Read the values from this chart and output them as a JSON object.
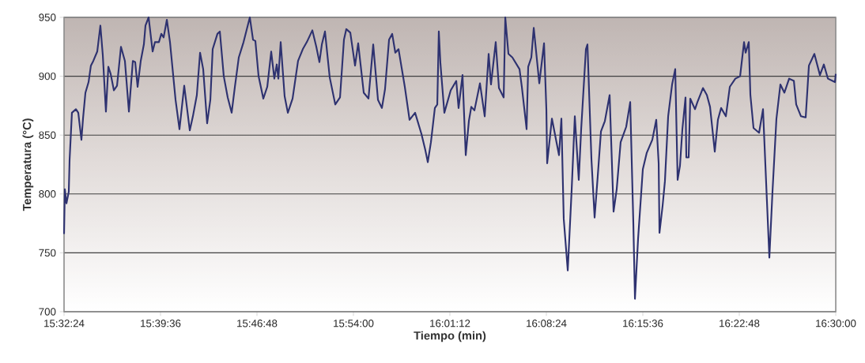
{
  "chart_data": {
    "type": "line",
    "xlabel": "Tiempo (min)",
    "ylabel": "Temperatura (°C)",
    "xlim": [
      15.54,
      16.5
    ],
    "ylim": [
      700,
      950
    ],
    "xticks": [
      {
        "value": 15.54,
        "label": "15:32:24"
      },
      {
        "value": 15.66,
        "label": "15:39:36"
      },
      {
        "value": 15.78,
        "label": "15:46:48"
      },
      {
        "value": 15.9,
        "label": "15:54:00"
      },
      {
        "value": 16.02,
        "label": "16:01:12"
      },
      {
        "value": 16.14,
        "label": "16:08:24"
      },
      {
        "value": 16.26,
        "label": "16:15:36"
      },
      {
        "value": 16.38,
        "label": "16:22:48"
      },
      {
        "value": 16.5,
        "label": "16:30:00"
      }
    ],
    "yticks": [
      700,
      750,
      800,
      850,
      900,
      950
    ],
    "grid": "y",
    "legend": false,
    "line_style": "solid",
    "series": [
      {
        "color": "#2e3270",
        "x": [
          15.54,
          15.541,
          15.543,
          15.5459,
          15.5469,
          15.5498,
          15.5548,
          15.5577,
          15.5616,
          15.5636,
          15.5666,
          15.5705,
          15.5734,
          15.5764,
          15.5813,
          15.5852,
          15.5882,
          15.5921,
          15.5951,
          15.598,
          15.602,
          15.6059,
          15.6108,
          15.6157,
          15.6207,
          15.6256,
          15.6285,
          15.6315,
          15.6354,
          15.6393,
          15.6413,
          15.6452,
          15.6502,
          15.6531,
          15.658,
          15.661,
          15.6639,
          15.6679,
          15.6718,
          15.6787,
          15.6836,
          15.6895,
          15.6915,
          15.6964,
          15.7003,
          15.7052,
          15.7092,
          15.7131,
          15.718,
          15.722,
          15.7249,
          15.7308,
          15.7338,
          15.7387,
          15.7436,
          15.7485,
          15.7525,
          15.7574,
          15.7633,
          15.7711,
          15.7751,
          15.778,
          15.782,
          15.7879,
          15.7928,
          15.7977,
          15.8016,
          15.8046,
          15.8066,
          15.8095,
          15.8144,
          15.8184,
          15.8243,
          15.8311,
          15.837,
          15.842,
          15.8489,
          15.8538,
          15.8577,
          15.8607,
          15.8646,
          15.8705,
          15.8774,
          15.8833,
          15.8882,
          15.8911,
          15.8961,
          15.902,
          15.9059,
          15.9128,
          15.9187,
          15.9246,
          15.9305,
          15.9354,
          15.9393,
          15.9443,
          15.9482,
          15.9521,
          15.9561,
          15.9639,
          15.9698,
          15.9767,
          15.9846,
          15.9895,
          15.9925,
          15.9964,
          16.0013,
          16.0043,
          16.0062,
          16.0082,
          16.0131,
          16.021,
          16.0279,
          16.0308,
          16.0357,
          16.0397,
          16.0436,
          16.0466,
          16.0505,
          16.0574,
          16.0633,
          16.0682,
          16.0711,
          16.077,
          16.081,
          16.0869,
          16.0889,
          16.0928,
          16.0977,
          16.1066,
          16.1095,
          16.1154,
          16.1174,
          16.1213,
          16.1243,
          16.1312,
          16.1371,
          16.14,
          16.141,
          16.1469,
          16.1557,
          16.1587,
          16.1616,
          16.1666,
          16.1715,
          16.1754,
          16.1803,
          16.1833,
          16.1892,
          16.1911,
          16.1961,
          16.2,
          16.2039,
          16.2079,
          16.2128,
          16.2187,
          16.2236,
          16.2275,
          16.2324,
          16.2393,
          16.2443,
          16.2482,
          16.2502,
          16.2541,
          16.259,
          16.26,
          16.2649,
          16.2718,
          16.2767,
          16.2797,
          16.2807,
          16.2846,
          16.2875,
          16.2915,
          16.2964,
          16.3003,
          16.3033,
          16.3062,
          16.3092,
          16.3131,
          16.3141,
          16.317,
          16.319,
          16.3249,
          16.3279,
          16.3348,
          16.3397,
          16.3436,
          16.3495,
          16.3534,
          16.3574,
          16.3633,
          16.3682,
          16.3751,
          16.381,
          16.3859,
          16.3879,
          16.3918,
          16.3938,
          16.3977,
          16.4046,
          16.4095,
          16.4125,
          16.4174,
          16.4213,
          16.4262,
          16.4311,
          16.4361,
          16.442,
          16.4479,
          16.4508,
          16.4567,
          16.4626,
          16.4666,
          16.4734,
          16.4803,
          16.4852,
          16.4902,
          16.499,
          16.5
        ],
        "values": [
          766,
          804,
          792,
          802,
          829,
          869,
          872,
          869,
          846,
          864,
          886,
          895,
          909,
          913,
          921,
          943,
          918,
          870,
          908,
          902,
          888,
          892,
          925,
          913,
          870,
          913,
          912,
          891,
          913,
          927,
          943,
          950,
          921,
          929,
          929,
          936,
          933,
          948,
          929,
          880,
          855,
          892,
          881,
          854,
          866,
          884,
          920,
          906,
          860,
          880,
          923,
          936,
          938,
          900,
          882,
          869,
          891,
          916,
          929,
          950,
          931,
          930,
          900,
          881,
          891,
          921,
          898,
          910,
          898,
          929,
          883,
          869,
          881,
          913,
          923,
          929,
          939,
          925,
          912,
          927,
          938,
          899,
          876,
          882,
          931,
          940,
          937,
          909,
          928,
          886,
          881,
          927,
          880,
          873,
          889,
          931,
          936,
          920,
          923,
          891,
          863,
          869,
          851,
          837,
          827,
          844,
          873,
          876,
          938,
          911,
          869,
          888,
          896,
          873,
          901,
          833,
          862,
          874,
          871,
          894,
          866,
          919,
          893,
          929,
          890,
          882,
          950,
          919,
          916,
          906,
          891,
          855,
          908,
          916,
          941,
          894,
          928,
          872,
          826,
          864,
          833,
          864,
          779,
          735,
          804,
          866,
          812,
          855,
          923,
          927,
          829,
          780,
          815,
          853,
          862,
          884,
          785,
          804,
          844,
          857,
          878,
          775,
          711,
          762,
          811,
          821,
          835,
          846,
          863,
          826,
          767,
          790,
          811,
          866,
          893,
          906,
          812,
          824,
          855,
          882,
          831,
          831,
          881,
          872,
          878,
          890,
          884,
          874,
          836,
          863,
          873,
          866,
          891,
          898,
          900,
          929,
          920,
          929,
          884,
          856,
          852,
          872,
          824,
          746,
          802,
          864,
          893,
          886,
          898,
          896,
          876,
          866,
          865,
          909,
          919,
          901,
          910,
          898,
          895,
          902
        ]
      }
    ]
  }
}
